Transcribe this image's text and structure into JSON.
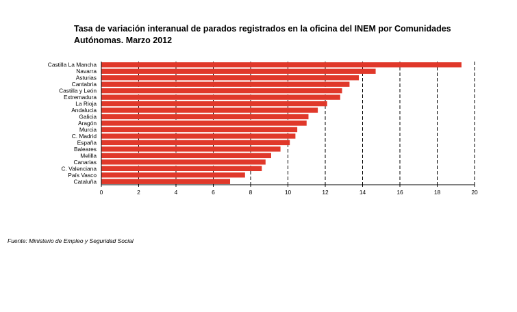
{
  "title_line1": "Tasa de variación interanual de parados registrados en la oficina del INEM por Comunidades",
  "title_line2": "Autónomas. Marzo 2012",
  "source": "Fuente: Ministerio de Empleo y Seguridad Social",
  "chart_data": {
    "type": "bar",
    "orientation": "horizontal",
    "title": "Tasa de variación interanual de parados registrados en la oficina del INEM por Comunidades Autónomas. Marzo 2012",
    "categories": [
      "Castilla La Mancha",
      "Navarra",
      "Asturias",
      "Cantabria",
      "Castilla y León",
      "Extremadura",
      "La Rioja",
      "Andalucia",
      "Galicia",
      "Aragón",
      "Murcia",
      "C. Madrid",
      "España",
      "Baleares",
      "Melilla",
      "Canarias",
      "C. Valenciana",
      "País Vasco",
      "Cataluña"
    ],
    "values": [
      19.3,
      14.7,
      13.8,
      13.3,
      12.9,
      12.8,
      12.1,
      11.6,
      11.1,
      11.0,
      10.5,
      10.4,
      10.1,
      9.6,
      9.1,
      8.8,
      8.6,
      7.7,
      6.9
    ],
    "xlim": [
      0,
      20
    ],
    "xticks": [
      0,
      2,
      4,
      6,
      8,
      10,
      12,
      14,
      16,
      18,
      20
    ],
    "grid": "vertical dashed",
    "bar_color": "#e0382a",
    "legend": "none"
  }
}
